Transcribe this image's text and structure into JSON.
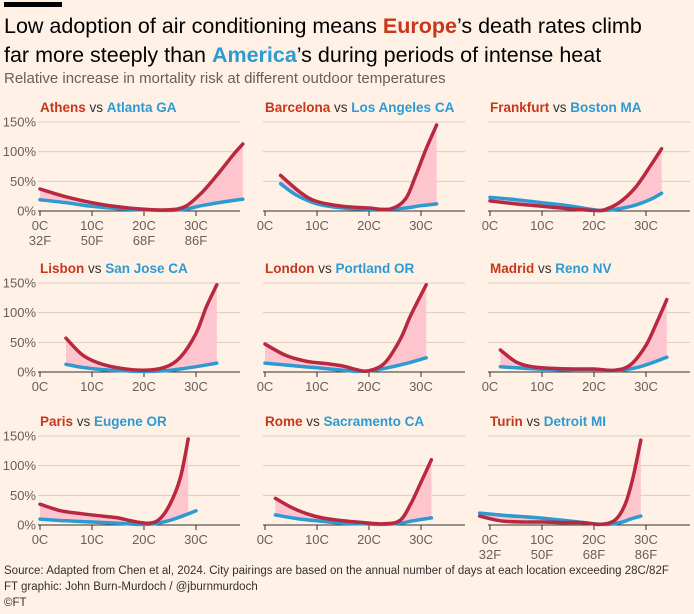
{
  "title": {
    "part1": "Low adoption of air conditioning means ",
    "europe": "Europe",
    "part2": "’s death rates climb",
    "part3": "far more steeply than ",
    "america": "America",
    "part4": "’s during periods of intense heat"
  },
  "subtitle": "Relative increase in mortality risk at different outdoor temperatures",
  "colors": {
    "europe": "#b8283e",
    "america": "#2e9ad2",
    "fill": "#ffc5cf",
    "grid": "#d9cdc3",
    "axis": "#33302e",
    "tick": "#66605c"
  },
  "vs_label": "vs",
  "y_ticks": [
    "150%",
    "100%",
    "50%",
    "0%"
  ],
  "x_ticks_c": [
    "0C",
    "10C",
    "20C",
    "30C"
  ],
  "x_ticks_f": [
    "32F",
    "50F",
    "68F",
    "86F"
  ],
  "chart_data": [
    {
      "type": "line",
      "europe": "Athens",
      "america": "Atlanta GA",
      "xlim": [
        0,
        39
      ],
      "ylim": [
        0,
        150
      ],
      "series": [
        {
          "name": "Athens",
          "x": [
            0,
            5,
            10,
            15,
            20,
            25,
            28,
            31,
            34,
            37,
            39
          ],
          "y": [
            37,
            24,
            14,
            7,
            3,
            2,
            8,
            30,
            60,
            93,
            113
          ]
        },
        {
          "name": "Atlanta GA",
          "x": [
            0,
            5,
            10,
            15,
            20,
            25,
            28,
            31,
            35,
            39
          ],
          "y": [
            19,
            14,
            8,
            4,
            2,
            1,
            3,
            9,
            15,
            20
          ]
        }
      ]
    },
    {
      "type": "line",
      "europe": "Barcelona",
      "america": "Los Angeles CA",
      "xlim": [
        0,
        39
      ],
      "ylim": [
        0,
        150
      ],
      "series": [
        {
          "name": "Barcelona",
          "x": [
            3,
            7,
            10,
            15,
            20,
            24,
            27,
            29,
            31,
            33
          ],
          "y": [
            60,
            30,
            16,
            8,
            5,
            3,
            20,
            60,
            105,
            145
          ]
        },
        {
          "name": "Los Angeles CA",
          "x": [
            3,
            6,
            10,
            15,
            20,
            24,
            27,
            30,
            33
          ],
          "y": [
            46,
            27,
            12,
            5,
            3,
            3,
            5,
            9,
            12
          ]
        }
      ]
    },
    {
      "type": "line",
      "europe": "Frankfurt",
      "america": "Boston MA",
      "xlim": [
        0,
        39
      ],
      "ylim": [
        0,
        150
      ],
      "series": [
        {
          "name": "Frankfurt",
          "x": [
            0,
            5,
            10,
            15,
            20,
            22,
            25,
            28,
            31,
            33
          ],
          "y": [
            17,
            12,
            8,
            4,
            1,
            2,
            15,
            40,
            78,
            105
          ]
        },
        {
          "name": "Boston MA",
          "x": [
            0,
            5,
            10,
            15,
            20,
            22,
            25,
            28,
            31,
            33
          ],
          "y": [
            23,
            19,
            14,
            9,
            2,
            1,
            4,
            10,
            20,
            30
          ]
        }
      ]
    },
    {
      "type": "line",
      "europe": "Lisbon",
      "america": "San Jose CA",
      "xlim": [
        0,
        39
      ],
      "ylim": [
        0,
        150
      ],
      "series": [
        {
          "name": "Lisbon",
          "x": [
            5,
            8,
            11,
            15,
            20,
            24,
            27,
            30,
            32,
            34
          ],
          "y": [
            57,
            30,
            16,
            7,
            3,
            8,
            25,
            65,
            110,
            147
          ]
        },
        {
          "name": "San Jose CA",
          "x": [
            5,
            8,
            12,
            16,
            20,
            24,
            27,
            30,
            34
          ],
          "y": [
            13,
            8,
            4,
            2,
            1,
            2,
            5,
            9,
            15
          ]
        }
      ]
    },
    {
      "type": "line",
      "europe": "London",
      "america": "Portland OR",
      "xlim": [
        0,
        39
      ],
      "ylim": [
        0,
        150
      ],
      "series": [
        {
          "name": "London",
          "x": [
            0,
            4,
            8,
            12,
            15,
            18,
            20,
            23,
            26,
            28,
            31
          ],
          "y": [
            47,
            28,
            18,
            14,
            10,
            3,
            2,
            15,
            55,
            95,
            147
          ]
        },
        {
          "name": "Portland OR",
          "x": [
            0,
            5,
            10,
            15,
            18,
            21,
            24,
            27,
            31
          ],
          "y": [
            15,
            11,
            7,
            3,
            1,
            3,
            8,
            14,
            24
          ]
        }
      ]
    },
    {
      "type": "line",
      "europe": "Madrid",
      "america": "Reno NV",
      "xlim": [
        0,
        39
      ],
      "ylim": [
        0,
        150
      ],
      "series": [
        {
          "name": "Madrid",
          "x": [
            2,
            5,
            8,
            12,
            16,
            20,
            24,
            27,
            30,
            32,
            34
          ],
          "y": [
            37,
            17,
            9,
            6,
            5,
            5,
            3,
            12,
            45,
            82,
            122
          ]
        },
        {
          "name": "Reno NV",
          "x": [
            2,
            5,
            9,
            13,
            17,
            21,
            25,
            28,
            31,
            34
          ],
          "y": [
            9,
            7,
            5,
            4,
            3,
            3,
            3,
            7,
            15,
            25
          ]
        }
      ]
    },
    {
      "type": "line",
      "europe": "Paris",
      "america": "Eugene OR",
      "xlim": [
        0,
        39
      ],
      "ylim": [
        0,
        150
      ],
      "series": [
        {
          "name": "Paris",
          "x": [
            0,
            4,
            8,
            12,
            15,
            18,
            21,
            23,
            25,
            27,
            28.5
          ],
          "y": [
            35,
            24,
            19,
            15,
            12,
            6,
            3,
            10,
            35,
            80,
            145
          ]
        },
        {
          "name": "Eugene OR",
          "x": [
            0,
            5,
            10,
            15,
            19,
            22,
            25,
            28,
            30
          ],
          "y": [
            10,
            7,
            5,
            3,
            1,
            2,
            8,
            17,
            24
          ]
        }
      ]
    },
    {
      "type": "line",
      "europe": "Rome",
      "america": "Sacramento CA",
      "xlim": [
        0,
        39
      ],
      "ylim": [
        0,
        150
      ],
      "series": [
        {
          "name": "Rome",
          "x": [
            2,
            5,
            8,
            11,
            15,
            19,
            23,
            26,
            28,
            30,
            32
          ],
          "y": [
            45,
            30,
            19,
            12,
            7,
            4,
            2,
            8,
            35,
            72,
            110
          ]
        },
        {
          "name": "Sacramento CA",
          "x": [
            2,
            6,
            10,
            15,
            19,
            23,
            26,
            29,
            32
          ],
          "y": [
            17,
            11,
            7,
            3,
            2,
            1,
            3,
            8,
            12
          ]
        }
      ]
    },
    {
      "type": "line",
      "europe": "Turin",
      "america": "Detroit MI",
      "xlim": [
        0,
        39
      ],
      "ylim": [
        0,
        150
      ],
      "series": [
        {
          "name": "Turin",
          "x": [
            -2,
            2,
            6,
            10,
            14,
            18,
            21,
            24,
            26,
            27.5,
            29
          ],
          "y": [
            15,
            7,
            5,
            5,
            4,
            4,
            1,
            8,
            35,
            80,
            143
          ]
        },
        {
          "name": "Detroit MI",
          "x": [
            -2,
            3,
            8,
            13,
            18,
            22,
            25,
            27,
            29
          ],
          "y": [
            20,
            16,
            13,
            9,
            4,
            1,
            4,
            10,
            15
          ]
        }
      ]
    }
  ],
  "footer": {
    "source": "Source: Adapted from Chen et al, 2024. City pairings are based on the annual number of days at each location exceeding 28C/82F",
    "credit": "FT graphic: John Burn-Murdoch / @jburnmurdoch",
    "copyright": "©FT"
  }
}
